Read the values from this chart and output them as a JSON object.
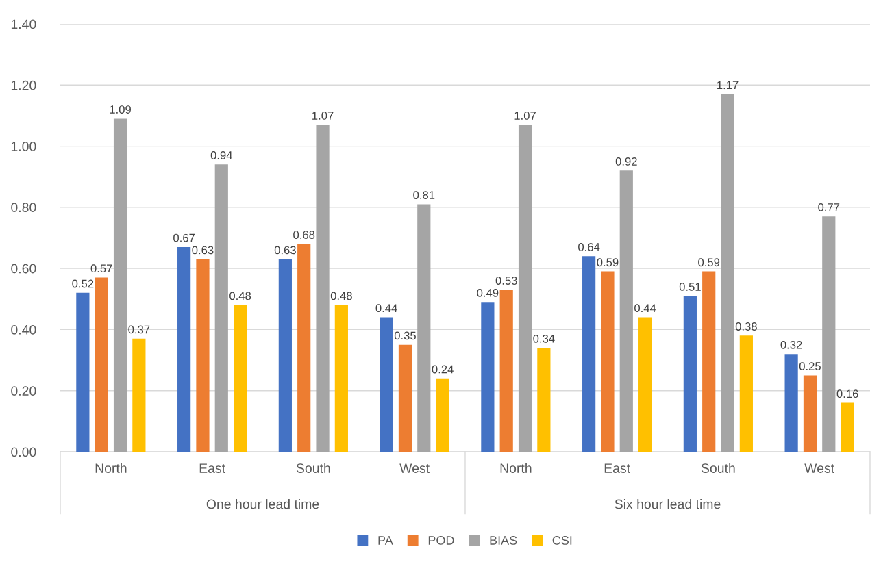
{
  "chart_data": {
    "type": "bar",
    "categories": [
      "North",
      "East",
      "South",
      "West",
      "North",
      "East",
      "South",
      "West"
    ],
    "series": [
      {
        "name": "PA",
        "color": "#4472c4",
        "values": [
          0.52,
          0.67,
          0.63,
          0.44,
          0.49,
          0.64,
          0.51,
          0.32
        ]
      },
      {
        "name": "POD",
        "color": "#ed7d31",
        "values": [
          0.57,
          0.63,
          0.68,
          0.35,
          0.53,
          0.59,
          0.59,
          0.25
        ]
      },
      {
        "name": "BIAS",
        "color": "#a5a5a5",
        "values": [
          1.09,
          0.94,
          1.07,
          0.81,
          1.07,
          0.92,
          1.17,
          0.77
        ]
      },
      {
        "name": "CSI",
        "color": "#ffc000",
        "values": [
          0.37,
          0.48,
          0.48,
          0.24,
          0.34,
          0.44,
          0.38,
          0.16
        ]
      }
    ],
    "ylim": [
      0,
      1.4
    ],
    "yticks": [
      {
        "value": 0,
        "label": "0.00"
      },
      {
        "value": 0.2,
        "label": "0.20"
      },
      {
        "value": 0.4,
        "label": "0.40"
      },
      {
        "value": 0.6,
        "label": "0.60"
      },
      {
        "value": 0.8,
        "label": "0.80"
      },
      {
        "value": 1.0,
        "label": "1.00"
      },
      {
        "value": 1.2,
        "label": "1.20"
      },
      {
        "value": 1.4,
        "label": "1.40"
      }
    ],
    "annotations": [
      "One hour lead time",
      "Six hour lead time"
    ],
    "data_labels": true,
    "grid": "y",
    "legend": "bottom"
  }
}
